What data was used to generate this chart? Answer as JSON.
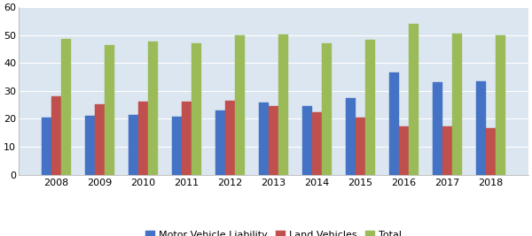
{
  "years": [
    2008,
    2009,
    2010,
    2011,
    2012,
    2013,
    2014,
    2015,
    2016,
    2017,
    2018
  ],
  "motor_vehicle_liability": [
    20.5,
    21.0,
    21.5,
    20.8,
    23.0,
    26.0,
    24.5,
    27.5,
    36.5,
    33.0,
    33.5
  ],
  "land_vehicles": [
    28.0,
    25.2,
    26.2,
    26.3,
    26.6,
    24.5,
    22.5,
    20.5,
    17.2,
    17.2,
    16.5
  ],
  "total": [
    48.5,
    46.5,
    47.8,
    47.0,
    49.8,
    50.2,
    47.0,
    48.2,
    54.0,
    50.5,
    49.8
  ],
  "bar_colors": [
    "#4472c4",
    "#c0504d",
    "#9bbb59"
  ],
  "legend_labels": [
    "Motor Vehicle Liability",
    "Land Vehicles",
    "Total"
  ],
  "ylim": [
    0.0,
    60.0
  ],
  "yticks": [
    0.0,
    10.0,
    20.0,
    30.0,
    40.0,
    50.0,
    60.0
  ],
  "bar_width": 0.22,
  "figsize": [
    6.0,
    2.67
  ],
  "dpi": 100,
  "plot_bg_color": "#dce6f1",
  "fig_bg_color": "#ffffff",
  "grid_color": "#ffffff",
  "tick_fontsize": 8,
  "legend_fontsize": 8
}
